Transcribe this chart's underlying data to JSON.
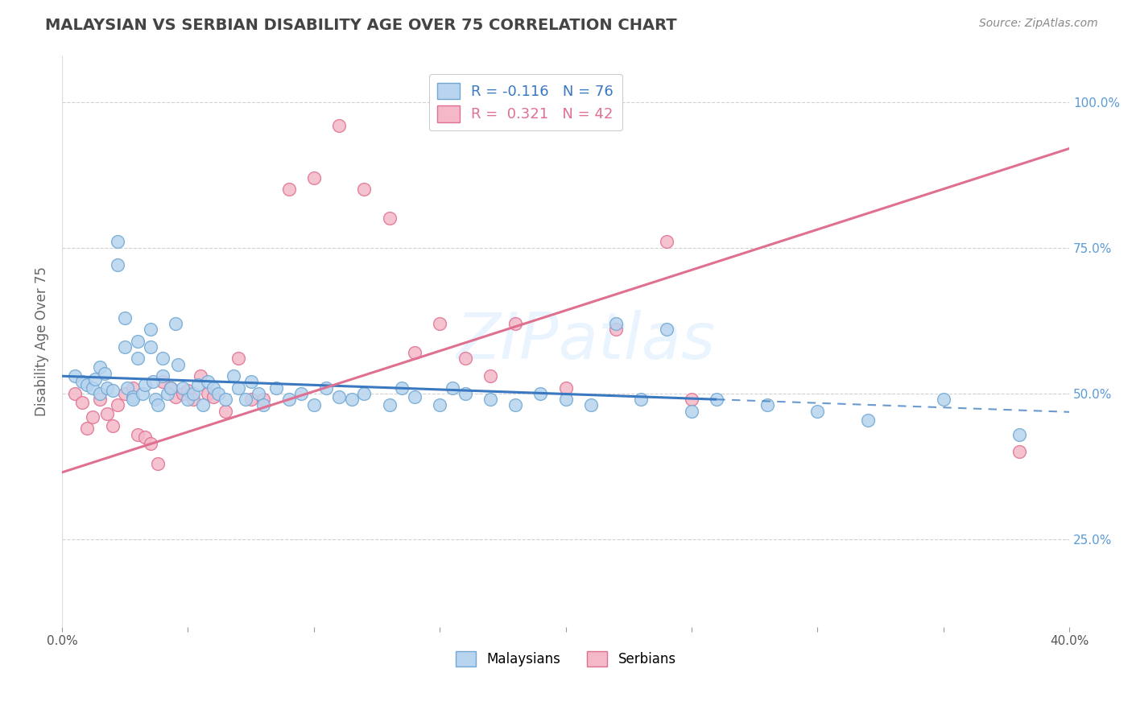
{
  "title": "MALAYSIAN VS SERBIAN DISABILITY AGE OVER 75 CORRELATION CHART",
  "source": "Source: ZipAtlas.com",
  "ylabel": "Disability Age Over 75",
  "xlim": [
    0.0,
    0.4
  ],
  "ylim": [
    0.1,
    1.08
  ],
  "yticks": [
    0.25,
    0.5,
    0.75,
    1.0
  ],
  "ytick_labels": [
    "25.0%",
    "50.0%",
    "75.0%",
    "100.0%"
  ],
  "malaysian_R": -0.116,
  "malaysian_N": 76,
  "serbian_R": 0.321,
  "serbian_N": 42,
  "malaysian_color": "#b8d4ee",
  "malaysian_edge": "#6fa8d4",
  "serbian_color": "#f4b8c8",
  "serbian_edge": "#e07090",
  "trend_malaysian_color": "#3a78c0",
  "trend_serbian_color": "#e07090",
  "watermark": "ZIPatlas",
  "malaysian_scatter_x": [
    0.005,
    0.008,
    0.01,
    0.012,
    0.013,
    0.015,
    0.015,
    0.017,
    0.018,
    0.02,
    0.022,
    0.022,
    0.025,
    0.025,
    0.026,
    0.028,
    0.028,
    0.03,
    0.03,
    0.032,
    0.033,
    0.035,
    0.035,
    0.036,
    0.037,
    0.038,
    0.04,
    0.04,
    0.042,
    0.043,
    0.045,
    0.046,
    0.048,
    0.05,
    0.052,
    0.054,
    0.056,
    0.058,
    0.06,
    0.062,
    0.065,
    0.068,
    0.07,
    0.073,
    0.075,
    0.078,
    0.08,
    0.085,
    0.09,
    0.095,
    0.1,
    0.105,
    0.11,
    0.115,
    0.12,
    0.13,
    0.135,
    0.14,
    0.15,
    0.155,
    0.16,
    0.17,
    0.18,
    0.19,
    0.2,
    0.21,
    0.22,
    0.23,
    0.24,
    0.25,
    0.26,
    0.28,
    0.3,
    0.32,
    0.35,
    0.38
  ],
  "malaysian_scatter_y": [
    0.53,
    0.52,
    0.515,
    0.51,
    0.525,
    0.5,
    0.545,
    0.535,
    0.51,
    0.505,
    0.76,
    0.72,
    0.58,
    0.63,
    0.51,
    0.495,
    0.49,
    0.56,
    0.59,
    0.5,
    0.515,
    0.61,
    0.58,
    0.52,
    0.49,
    0.48,
    0.53,
    0.56,
    0.5,
    0.51,
    0.62,
    0.55,
    0.51,
    0.49,
    0.5,
    0.515,
    0.48,
    0.52,
    0.51,
    0.5,
    0.49,
    0.53,
    0.51,
    0.49,
    0.52,
    0.5,
    0.48,
    0.51,
    0.49,
    0.5,
    0.48,
    0.51,
    0.495,
    0.49,
    0.5,
    0.48,
    0.51,
    0.495,
    0.48,
    0.51,
    0.5,
    0.49,
    0.48,
    0.5,
    0.49,
    0.48,
    0.62,
    0.49,
    0.61,
    0.47,
    0.49,
    0.48,
    0.47,
    0.455,
    0.49,
    0.43
  ],
  "serbian_scatter_x": [
    0.005,
    0.008,
    0.01,
    0.012,
    0.015,
    0.018,
    0.02,
    0.022,
    0.025,
    0.028,
    0.03,
    0.033,
    0.035,
    0.038,
    0.04,
    0.043,
    0.045,
    0.048,
    0.05,
    0.052,
    0.055,
    0.058,
    0.06,
    0.065,
    0.07,
    0.075,
    0.08,
    0.09,
    0.1,
    0.11,
    0.12,
    0.13,
    0.14,
    0.15,
    0.16,
    0.17,
    0.18,
    0.2,
    0.22,
    0.25,
    0.38,
    0.24
  ],
  "serbian_scatter_y": [
    0.5,
    0.485,
    0.44,
    0.46,
    0.49,
    0.465,
    0.445,
    0.48,
    0.5,
    0.51,
    0.43,
    0.425,
    0.415,
    0.38,
    0.52,
    0.51,
    0.495,
    0.5,
    0.505,
    0.49,
    0.53,
    0.5,
    0.495,
    0.47,
    0.56,
    0.49,
    0.49,
    0.85,
    0.87,
    0.96,
    0.85,
    0.8,
    0.57,
    0.62,
    0.56,
    0.53,
    0.62,
    0.51,
    0.61,
    0.49,
    0.4,
    0.76
  ],
  "trend_m_x0": 0.0,
  "trend_m_y0": 0.53,
  "trend_m_x1": 0.26,
  "trend_m_y1": 0.49,
  "trend_m_dash_x0": 0.26,
  "trend_m_dash_x1": 0.4,
  "trend_s_x0": 0.0,
  "trend_s_y0": 0.365,
  "trend_s_x1": 0.4,
  "trend_s_y1": 0.92
}
